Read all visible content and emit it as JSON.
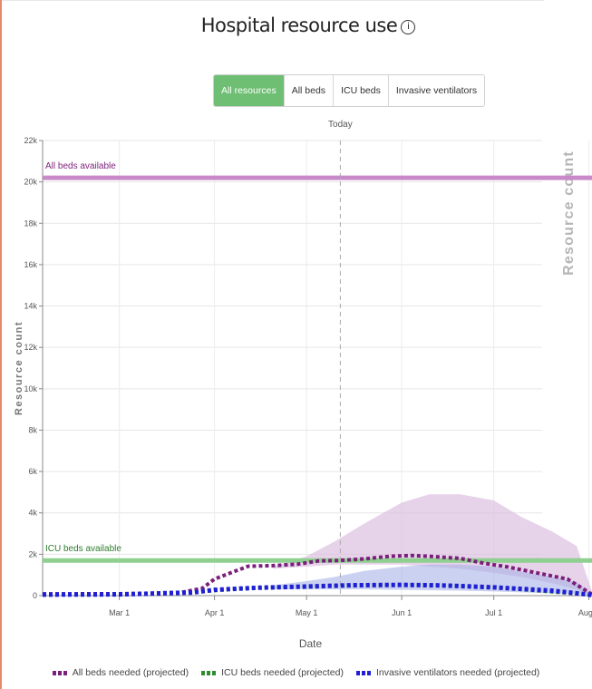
{
  "title": "Hospital resource use",
  "info_icon": "info-icon",
  "buttons": [
    {
      "label": "All resources",
      "active": true
    },
    {
      "label": "All beds",
      "active": false
    },
    {
      "label": "ICU beds",
      "active": false
    },
    {
      "label": "Invasive ventilators",
      "active": false
    }
  ],
  "side_label": "Resource count",
  "colors": {
    "accent": "#6ebf73",
    "all_beds": "#7a1f7a",
    "icu_beds": "#2e8b2e",
    "ventilators": "#1f1fd6",
    "all_beds_band": "#dcbfe0",
    "vent_band": "#a9b3e6",
    "all_beds_available_line": "#c98ac9",
    "icu_available_line": "#8fcf8f"
  },
  "chart_data": {
    "type": "line",
    "xlabel": "Date",
    "ylabel": "Resource count",
    "ylim": [
      0,
      22000
    ],
    "yticks": [
      0,
      2000,
      4000,
      6000,
      8000,
      10000,
      12000,
      14000,
      16000,
      18000,
      20000,
      22000
    ],
    "ytick_labels": [
      "0",
      "2k",
      "4k",
      "6k",
      "8k",
      "10k",
      "12k",
      "14k",
      "16k",
      "18k",
      "20k",
      "22k"
    ],
    "xlim": [
      "2020-02-05",
      "2020-08-02"
    ],
    "xticks": [
      "2020-03-01",
      "2020-04-01",
      "2020-05-01",
      "2020-06-01",
      "2020-07-01",
      "2020-08-01"
    ],
    "xtick_labels": [
      "Mar 1",
      "Apr 1",
      "May 1",
      "Jun 1",
      "Jul 1",
      "Aug 1"
    ],
    "today": {
      "label": "Today",
      "date": "2020-05-12"
    },
    "reference_lines": [
      {
        "label": "All beds available",
        "value": 20200,
        "color": "#c98ac9"
      },
      {
        "label": "ICU beds available",
        "value": 1700,
        "color": "#8fcf8f"
      }
    ],
    "series": [
      {
        "name": "All beds needed (projected)",
        "color": "#7a1f7a",
        "x": [
          "2020-02-05",
          "2020-03-01",
          "2020-03-20",
          "2020-03-28",
          "2020-04-01",
          "2020-04-08",
          "2020-04-12",
          "2020-04-20",
          "2020-04-28",
          "2020-05-05",
          "2020-05-12",
          "2020-05-20",
          "2020-05-28",
          "2020-06-04",
          "2020-06-10",
          "2020-06-20",
          "2020-06-28",
          "2020-07-05",
          "2020-07-15",
          "2020-07-25",
          "2020-08-02"
        ],
        "y": [
          80,
          90,
          120,
          350,
          800,
          1200,
          1420,
          1450,
          1520,
          1680,
          1700,
          1780,
          1900,
          1940,
          1900,
          1800,
          1560,
          1400,
          1100,
          800,
          60
        ]
      },
      {
        "name": "ICU beds needed (projected)",
        "color": "#2e8b2e",
        "x": [
          "2020-02-05",
          "2020-03-01",
          "2020-03-28",
          "2020-04-10",
          "2020-05-01",
          "2020-05-20",
          "2020-06-10",
          "2020-07-01",
          "2020-08-02"
        ],
        "y": [
          40,
          50,
          200,
          350,
          450,
          500,
          520,
          400,
          40
        ]
      },
      {
        "name": "Invasive ventilators needed (projected)",
        "color": "#1f1fd6",
        "x": [
          "2020-02-05",
          "2020-03-01",
          "2020-03-25",
          "2020-04-01",
          "2020-04-15",
          "2020-05-01",
          "2020-05-15",
          "2020-06-01",
          "2020-06-15",
          "2020-07-01",
          "2020-07-20",
          "2020-08-02"
        ],
        "y": [
          50,
          60,
          150,
          280,
          380,
          440,
          500,
          520,
          490,
          400,
          240,
          30
        ]
      }
    ],
    "bands": [
      {
        "for": "All beds needed (projected)",
        "color": "#dcbfe0",
        "x": [
          "2020-04-20",
          "2020-05-01",
          "2020-05-10",
          "2020-05-20",
          "2020-06-01",
          "2020-06-10",
          "2020-06-20",
          "2020-07-01",
          "2020-07-10",
          "2020-07-20",
          "2020-07-28",
          "2020-08-02"
        ],
        "upper": [
          1400,
          1900,
          2600,
          3500,
          4500,
          4900,
          4900,
          4600,
          3800,
          3100,
          2400,
          200
        ],
        "lower": [
          1300,
          1400,
          1500,
          1500,
          1500,
          1400,
          1300,
          1100,
          900,
          600,
          300,
          20
        ]
      },
      {
        "for": "Invasive ventilators needed (projected)",
        "color": "#a9b3e6",
        "x": [
          "2020-04-20",
          "2020-05-01",
          "2020-05-10",
          "2020-05-20",
          "2020-06-01",
          "2020-06-10",
          "2020-06-20",
          "2020-07-01",
          "2020-07-10",
          "2020-07-20",
          "2020-07-28",
          "2020-08-02"
        ],
        "upper": [
          500,
          700,
          900,
          1200,
          1400,
          1500,
          1500,
          1400,
          1150,
          900,
          650,
          100
        ],
        "lower": [
          300,
          300,
          300,
          300,
          280,
          260,
          240,
          200,
          160,
          110,
          70,
          10
        ]
      }
    ],
    "legend": [
      "All beds needed (projected)",
      "ICU beds needed (projected)",
      "Invasive ventilators needed (projected)"
    ],
    "legend_position": "bottom",
    "grid": true
  }
}
